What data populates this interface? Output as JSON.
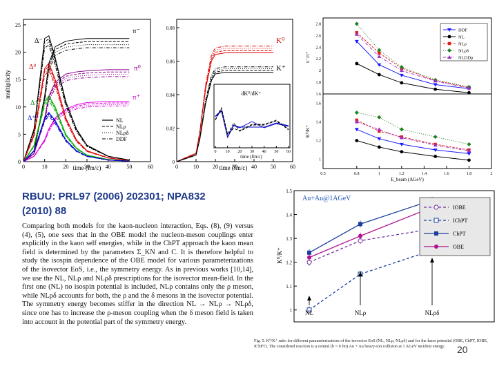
{
  "heading_line1": "RBUU: PRL97 (2006) 202301; NPA832",
  "heading_line2": "(2010) 88",
  "paragraph": "Comparing both models for the kaon-nucleon interaction, Eqs. (8), (9) versus (4), (5), one sees that in the OBE model the nucleon-meson couplings enter explicitly in the kaon self energies, while in the ChPT approach the kaon mean field is determined by the parameters Σ_KN and C. It is therefore helpful to study the isospin dependence of the OBE model for various parameterizations of the isovector EoS, i.e., the symmetry energy. As in previous works [10,14], we use the NL, NLρ and NLρδ prescriptions for the isovector mean-field. In the first one (NL) no isospin potential is included, NLρ contains only the ρ meson, while NLρδ accounts for both, the ρ and the δ mesons in the isovector potential. The symmetry energy becomes stiffer in the direction NL → NLρ → NLρδ, since one has to increase the ρ-meson coupling when the δ meson field is taken into account in the potential part of the symmetry energy.",
  "caption": "Fig. 5. K⁰/K⁺ ratio for different parameterizations of the isovector EoS (NL, NLρ, NLρδ) and for the kaon potential (OBE, ChPT, IOBE, IChPT). The considered reaction is a central (b = 0 fm) Au + Au heavy-ion collision at 1 AGeV incident energy.",
  "page_number": "20",
  "panel1": {
    "ylabel": "multiplicity",
    "xlabel": "time (fm/c)",
    "yticks": [
      "0",
      "5",
      "10",
      "15",
      "20",
      "25"
    ],
    "xticks": [
      "0",
      "10",
      "20",
      "30",
      "40",
      "50",
      "60"
    ],
    "labels": {
      "pi_minus": "π⁻",
      "pi_zero": "π⁰",
      "pi_plus": "π⁺",
      "delta_minus": "Δ⁻",
      "delta_zero": "Δ⁰",
      "delta_plus": "Δ⁺",
      "delta_pp": "Δ⁺⁺"
    },
    "legend": [
      "NL",
      "NLρ",
      "NLρδ",
      "DDF"
    ]
  },
  "panel2": {
    "xlabel": "time (fm/c)",
    "yticks": [
      "0",
      "0.02",
      "0.04",
      "0.06",
      "0.08"
    ],
    "xticks": [
      "0",
      "10",
      "20",
      "30",
      "40",
      "50",
      "60"
    ],
    "labels": {
      "k_zero": "K⁰",
      "k_plus": "K⁺"
    },
    "inset_label": "dK⁰/dK⁺",
    "inset_xlabel": "time (fm/c)",
    "inset_xticks": [
      "0",
      "10",
      "20",
      "30",
      "40",
      "50",
      "60"
    ]
  },
  "panel3": {
    "xlabel": "E_beam (AGeV)",
    "ylabel_top": "π⁻/π⁺",
    "ylabel_bottom": "K⁰/K⁺",
    "xticks": [
      "0.5",
      "0.8",
      "1",
      "1.2",
      "1.4",
      "1.6",
      "1.8",
      "2"
    ],
    "yticks_top": [
      "1.6",
      "1.8",
      "2",
      "2.2",
      "2.4",
      "2.6",
      "2.8"
    ],
    "yticks_bottom": [
      "1",
      "1.2",
      "1.4",
      "1.6"
    ],
    "legend": [
      "DDF",
      "NL",
      "NLρ",
      "NLρδ",
      "NLDDρ"
    ]
  },
  "panel4": {
    "ylabel": "K⁰/K⁺",
    "annotation": "Au+Au@1AGeV",
    "arrows": [
      "NL",
      "NLρ",
      "NLρδ"
    ],
    "yticks": [
      "1",
      "1.1",
      "1.2",
      "1.3",
      "1.4",
      "1.5"
    ]
  },
  "chart_data": [
    {
      "type": "line",
      "title": "",
      "xlabel": "time (fm/c)",
      "ylabel": "multiplicity",
      "xlim": [
        0,
        60
      ],
      "ylim": [
        0,
        26
      ],
      "x": [
        0,
        5,
        10,
        12,
        15,
        20,
        25,
        30,
        40,
        50
      ],
      "series": [
        {
          "name": "π⁻",
          "values": [
            0,
            2,
            12,
            18,
            21,
            22,
            22.3,
            22.5,
            22.5,
            22.5
          ]
        },
        {
          "name": "π⁰",
          "values": [
            0,
            1.5,
            8,
            12,
            14.5,
            16,
            16.4,
            16.6,
            16.8,
            16.8
          ]
        },
        {
          "name": "π⁺",
          "values": [
            0,
            1,
            4,
            6,
            8,
            9.6,
            10.4,
            10.8,
            11.0,
            11.0
          ]
        },
        {
          "name": "Δ⁻",
          "values": [
            0,
            6,
            22.5,
            23,
            19,
            11,
            6,
            3,
            1,
            0.3
          ]
        },
        {
          "name": "Δ⁰",
          "values": [
            0,
            5,
            17,
            18,
            15,
            8,
            4,
            2,
            0.7,
            0.2
          ]
        },
        {
          "name": "Δ⁺",
          "values": [
            0,
            3,
            11,
            12,
            10,
            5,
            2.5,
            1.2,
            0.4,
            0.1
          ]
        },
        {
          "name": "Δ⁺⁺",
          "values": [
            0,
            2,
            8,
            9,
            7.5,
            4,
            2,
            1,
            0.3,
            0.1
          ]
        }
      ]
    },
    {
      "type": "line",
      "title": "",
      "xlabel": "time (fm/c)",
      "ylabel": "",
      "xlim": [
        0,
        60
      ],
      "ylim": [
        0,
        0.085
      ],
      "x": [
        0,
        10,
        12,
        15,
        18,
        20,
        25,
        30,
        40,
        50
      ],
      "series": [
        {
          "name": "K⁰",
          "values": [
            0,
            0.005,
            0.018,
            0.045,
            0.062,
            0.066,
            0.067,
            0.067,
            0.067,
            0.067
          ]
        },
        {
          "name": "K⁺",
          "values": [
            0,
            0.004,
            0.014,
            0.036,
            0.05,
            0.054,
            0.055,
            0.055,
            0.055,
            0.055
          ]
        }
      ]
    },
    {
      "type": "line",
      "title": "",
      "xlabel": "E_beam (AGeV)",
      "ylabel": "π⁻/π⁺",
      "xlim": [
        0.5,
        2
      ],
      "ylim": [
        1.6,
        2.9
      ],
      "x": [
        0.8,
        1,
        1.2,
        1.5,
        1.8
      ],
      "series": [
        {
          "name": "DDF",
          "values": [
            2.5,
            2.1,
            1.92,
            1.76,
            1.69
          ]
        },
        {
          "name": "NL",
          "values": [
            2.12,
            1.93,
            1.79,
            1.68,
            1.62
          ]
        },
        {
          "name": "NLρ",
          "values": [
            2.65,
            2.3,
            2.04,
            1.83,
            1.71
          ]
        },
        {
          "name": "NLρδ",
          "values": [
            2.8,
            2.35,
            2.06,
            1.84,
            1.72
          ]
        },
        {
          "name": "NLDDρ",
          "values": [
            2.62,
            2.24,
            2.0,
            1.82,
            1.7
          ]
        }
      ]
    },
    {
      "type": "line",
      "title": "",
      "xlabel": "E_beam (AGeV)",
      "ylabel": "K⁰/K⁺",
      "xlim": [
        0.5,
        2
      ],
      "ylim": [
        0.9,
        1.7
      ],
      "x": [
        0.8,
        1,
        1.2,
        1.5,
        1.8
      ],
      "series": [
        {
          "name": "DDF",
          "values": [
            1.32,
            1.22,
            1.16,
            1.1,
            1.06
          ]
        },
        {
          "name": "NL",
          "values": [
            1.2,
            1.13,
            1.08,
            1.03,
            0.99
          ]
        },
        {
          "name": "NLρ",
          "values": [
            1.42,
            1.3,
            1.24,
            1.16,
            1.1
          ]
        },
        {
          "name": "NLρδ",
          "values": [
            1.5,
            1.45,
            1.32,
            1.24,
            1.16
          ]
        },
        {
          "name": "NLDDρ",
          "values": [
            1.4,
            1.32,
            1.23,
            1.15,
            1.09
          ]
        }
      ]
    },
    {
      "type": "line",
      "title": "",
      "xlabel": "",
      "ylabel": "K⁰/K⁺",
      "xlim": [
        0,
        4
      ],
      "ylim": [
        0.95,
        1.5
      ],
      "categories": [
        "NL",
        "NLρ",
        "NLρδ"
      ],
      "series": [
        {
          "name": "IOBE",
          "values": [
            1.2,
            1.29,
            1.34
          ]
        },
        {
          "name": "IChPT",
          "values": [
            1.0,
            1.15,
            1.25
          ]
        },
        {
          "name": "ChPT",
          "values": [
            1.24,
            1.36,
            1.46
          ]
        },
        {
          "name": "OBE",
          "values": [
            1.22,
            1.31,
            1.43
          ]
        }
      ]
    }
  ]
}
